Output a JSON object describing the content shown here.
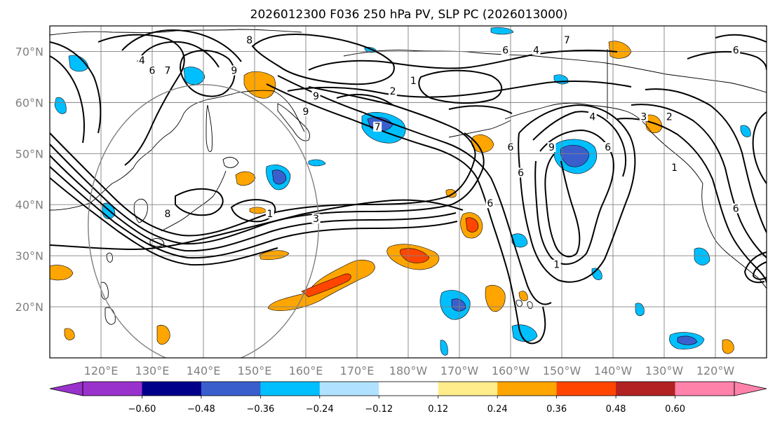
{
  "title": "2026012300 F036 250 hPa PV, SLP PC (2026013000)",
  "map": {
    "lon_range": [
      110,
      250
    ],
    "lat_range": [
      10,
      75
    ],
    "lat_ticks": [
      {
        "lat": 70,
        "label": "70°N"
      },
      {
        "lat": 60,
        "label": "60°N"
      },
      {
        "lat": 50,
        "label": "50°N"
      },
      {
        "lat": 40,
        "label": "40°N"
      },
      {
        "lat": 30,
        "label": "30°N"
      },
      {
        "lat": 20,
        "label": "20°N"
      }
    ],
    "lon_ticks": [
      {
        "lon": 120,
        "label": "120°E"
      },
      {
        "lon": 130,
        "label": "130°E"
      },
      {
        "lon": 140,
        "label": "140°E"
      },
      {
        "lon": 150,
        "label": "150°E"
      },
      {
        "lon": 160,
        "label": "160°E"
      },
      {
        "lon": 170,
        "label": "170°E"
      },
      {
        "lon": 180,
        "label": "180°W"
      },
      {
        "lon": 190,
        "label": "170°W"
      },
      {
        "lon": 200,
        "label": "160°W"
      },
      {
        "lon": 210,
        "label": "150°W"
      },
      {
        "lon": 220,
        "label": "140°W"
      },
      {
        "lon": 230,
        "label": "130°W"
      },
      {
        "lon": 240,
        "label": "120°W"
      }
    ],
    "circle": {
      "center_lon": 140,
      "center_lat": 36,
      "radius_deg": 25
    }
  },
  "colorbar": {
    "bounds": [
      -0.72,
      -0.6,
      -0.48,
      -0.36,
      -0.24,
      -0.12,
      0.12,
      0.24,
      0.36,
      0.48,
      0.6,
      0.72
    ],
    "colors": [
      "#9932cc",
      "#00008b",
      "#3a5fcd",
      "#00bfff",
      "#b0e2ff",
      "#ffffff",
      "#ffec8b",
      "#ffa500",
      "#ff4500",
      "#b22222",
      "#ff82ab"
    ],
    "extend_min_color": "#9932cc",
    "extend_max_color": "#ff82ab",
    "tick_labels": [
      "−0.60",
      "−0.48",
      "−0.36",
      "−0.24",
      "−0.12",
      "0.12",
      "0.24",
      "0.36",
      "0.48",
      "0.60"
    ]
  },
  "contour_labels": [
    {
      "text": "8",
      "lon": 149,
      "lat": 72
    },
    {
      "text": "6",
      "lon": 130,
      "lat": 66
    },
    {
      "text": "4",
      "lon": 128,
      "lat": 68
    },
    {
      "text": "9",
      "lon": 146,
      "lat": 66
    },
    {
      "text": "7",
      "lon": 133,
      "lat": 66
    },
    {
      "text": "7",
      "lon": 211,
      "lon_note": "",
      "lat": 72
    },
    {
      "text": "4",
      "lon": 205,
      "lat": 70
    },
    {
      "text": "6",
      "lon": 199,
      "lat": 70
    },
    {
      "text": "6",
      "lon": 244,
      "lat": 70
    },
    {
      "text": "1",
      "lon": 181,
      "lat": 64
    },
    {
      "text": "2",
      "lon": 177,
      "lat": 62
    },
    {
      "text": "9",
      "lon": 162,
      "lat": 61
    },
    {
      "text": "9",
      "lon": 160,
      "lat": 58
    },
    {
      "text": "7",
      "lon": 174,
      "lat": 55
    },
    {
      "text": "4",
      "lon": 216,
      "lat": 57
    },
    {
      "text": "3",
      "lon": 226,
      "lat": 57
    },
    {
      "text": "2",
      "lon": 231,
      "lat": 57
    },
    {
      "text": "6",
      "lon": 200,
      "lat": 51
    },
    {
      "text": "6",
      "lon": 219,
      "lat": 51
    },
    {
      "text": "9",
      "lon": 208,
      "lat": 51
    },
    {
      "text": "6",
      "lon": 202,
      "lat": 46
    },
    {
      "text": "1",
      "lon": 232,
      "lat": 47
    },
    {
      "text": "8",
      "lon": 133,
      "lat": 38
    },
    {
      "text": "1",
      "lon": 153,
      "lat": 38
    },
    {
      "text": "3",
      "lon": 162,
      "lat": 37
    },
    {
      "text": "6",
      "lon": 196,
      "lat": 40
    },
    {
      "text": "1",
      "lon": 209,
      "lat": 28
    },
    {
      "text": "6",
      "lon": 244,
      "lat": 39
    }
  ]
}
